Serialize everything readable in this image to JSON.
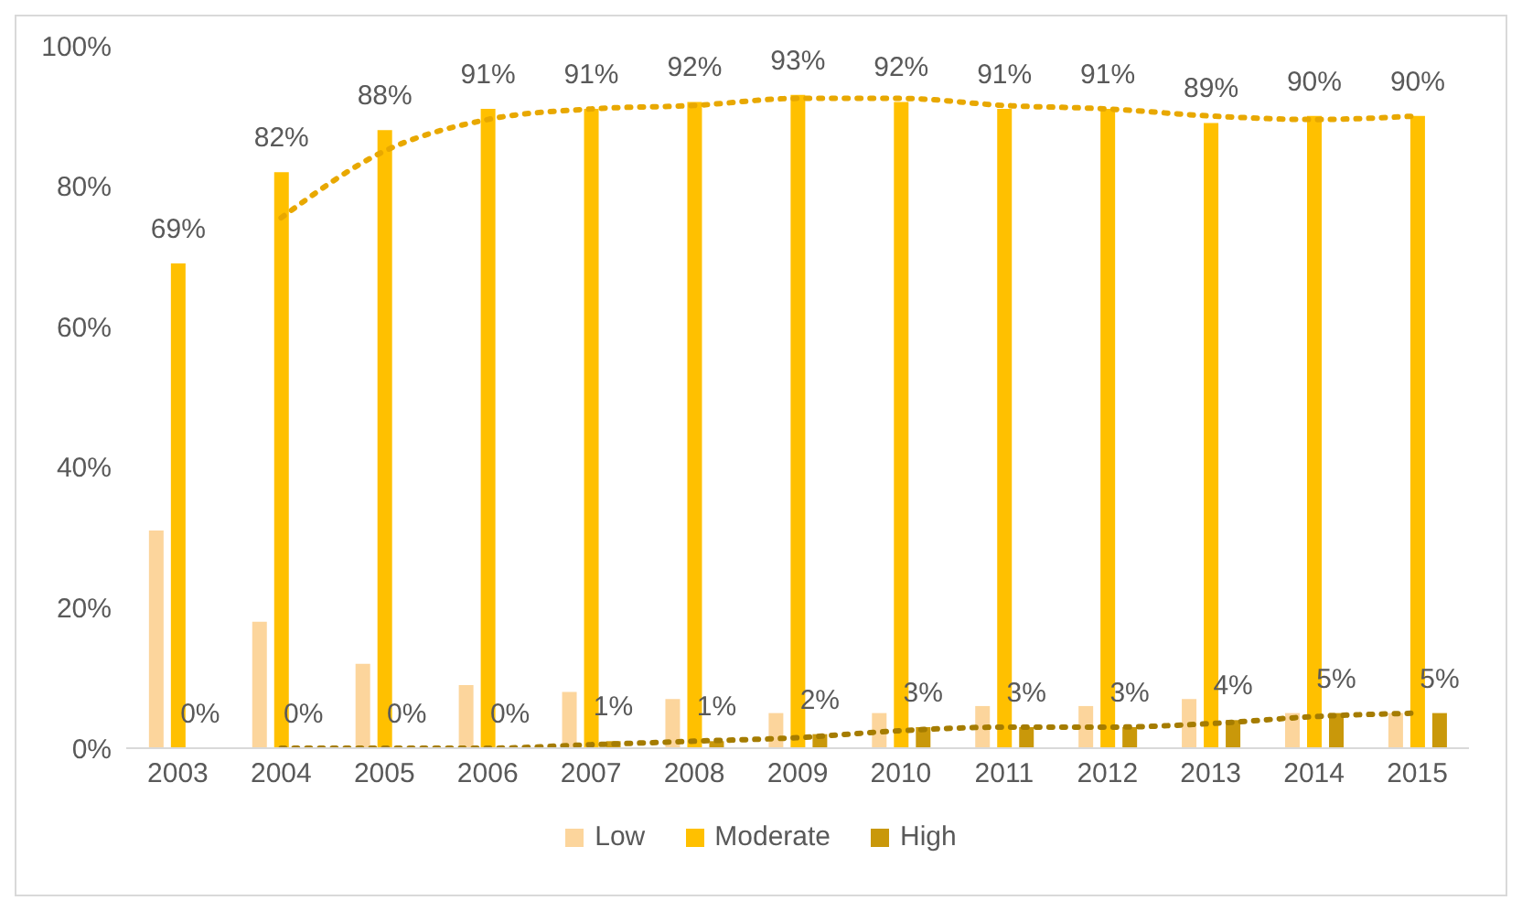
{
  "chart_data": {
    "type": "bar",
    "categories": [
      "2003",
      "2004",
      "2005",
      "2006",
      "2007",
      "2008",
      "2009",
      "2010",
      "2011",
      "2012",
      "2013",
      "2014",
      "2015"
    ],
    "series": [
      {
        "name": "Low",
        "color": "#fcd59c",
        "values": [
          31,
          18,
          12,
          9,
          8,
          7,
          5,
          5,
          6,
          6,
          7,
          5,
          5
        ]
      },
      {
        "name": "Moderate",
        "color": "#ffc000",
        "values": [
          69,
          82,
          88,
          91,
          91,
          92,
          93,
          92,
          91,
          91,
          89,
          90,
          90
        ],
        "value_labels": [
          "69%",
          "82%",
          "88%",
          "91%",
          "91%",
          "92%",
          "93%",
          "92%",
          "91%",
          "91%",
          "89%",
          "90%",
          "90%"
        ]
      },
      {
        "name": "High",
        "color": "#c9980a",
        "values": [
          0,
          0,
          0,
          0,
          1,
          1,
          2,
          3,
          3,
          3,
          4,
          5,
          5
        ],
        "value_labels": [
          "0%",
          "0%",
          "0%",
          "0%",
          "1%",
          "1%",
          "2%",
          "3%",
          "3%",
          "3%",
          "4%",
          "5%",
          "5%"
        ]
      },
      {
        "type": "line",
        "color": "#e8a800",
        "line_style": "dotted",
        "values": [
          null,
          75.5,
          85,
          89.5,
          91,
          91.5,
          92.5,
          92.5,
          91.5,
          91,
          90,
          89.5,
          90
        ]
      },
      {
        "type": "line",
        "color": "#a57c00",
        "line_style": "dotted",
        "values": [
          null,
          0,
          0,
          0,
          0.5,
          1,
          1.5,
          2.5,
          3,
          3,
          3.5,
          4.5,
          5
        ]
      }
    ],
    "ylim": [
      0,
      100
    ],
    "yticks": [
      {
        "value": 0,
        "label": "0%"
      },
      {
        "value": 20,
        "label": "20%"
      },
      {
        "value": 40,
        "label": "40%"
      },
      {
        "value": 60,
        "label": "60%"
      },
      {
        "value": 80,
        "label": "80%"
      },
      {
        "value": 100,
        "label": "100%"
      }
    ],
    "grid": false,
    "legend": "bottom",
    "marker": "none"
  }
}
